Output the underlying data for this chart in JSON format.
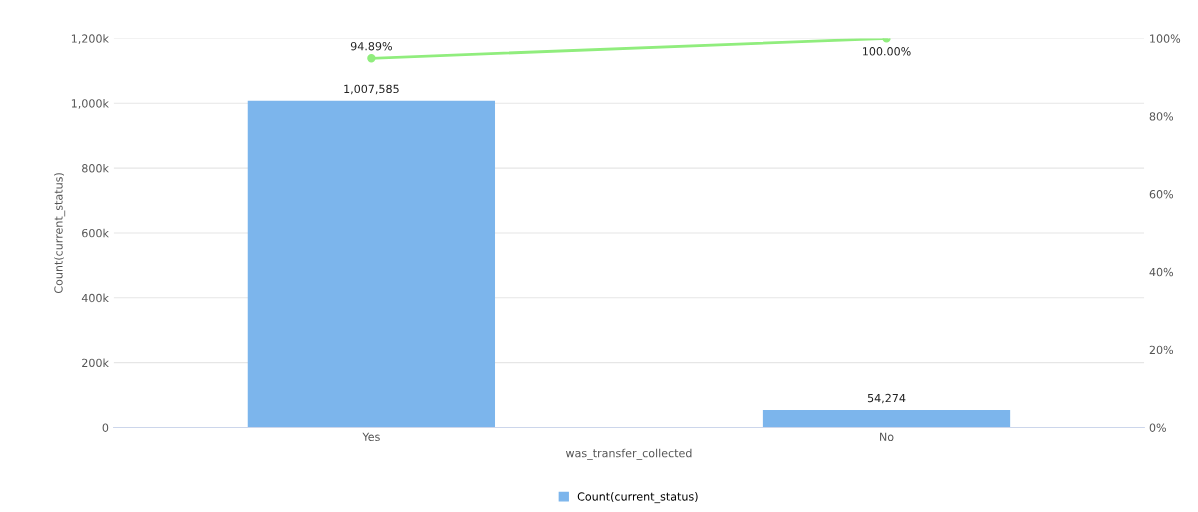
{
  "chart_data": {
    "type": "bar",
    "xlabel": "was_transfer_collected",
    "ylabel": "Count(current_status)",
    "categories": [
      "Yes",
      "No"
    ],
    "series": [
      {
        "name": "Count(current_status)",
        "color": "#7cb5ec",
        "values": [
          1007585,
          54274
        ],
        "value_labels": [
          "1,007,585",
          "54,274"
        ]
      },
      {
        "type": "line",
        "axis": "y2",
        "color": "#90ed7d",
        "values": [
          94.89,
          100.0
        ],
        "value_labels": [
          "94.89%",
          "100.00%"
        ],
        "marker": "circle"
      }
    ],
    "ylim": [
      0,
      1200000
    ],
    "yticks": [
      {
        "value": 0,
        "label": "0"
      },
      {
        "value": 200000,
        "label": "200k"
      },
      {
        "value": 400000,
        "label": "400k"
      },
      {
        "value": 600000,
        "label": "600k"
      },
      {
        "value": 800000,
        "label": "800k"
      },
      {
        "value": 1000000,
        "label": "1,000k"
      },
      {
        "value": 1200000,
        "label": "1,200k"
      }
    ],
    "y2lim": [
      0,
      100
    ],
    "y2ticks": [
      {
        "value": 0,
        "label": "0%"
      },
      {
        "value": 20,
        "label": "20%"
      },
      {
        "value": 40,
        "label": "40%"
      },
      {
        "value": 60,
        "label": "60%"
      },
      {
        "value": 80,
        "label": "80%"
      },
      {
        "value": 100,
        "label": "100%"
      }
    ],
    "grid": "y",
    "legend": "bottom"
  }
}
